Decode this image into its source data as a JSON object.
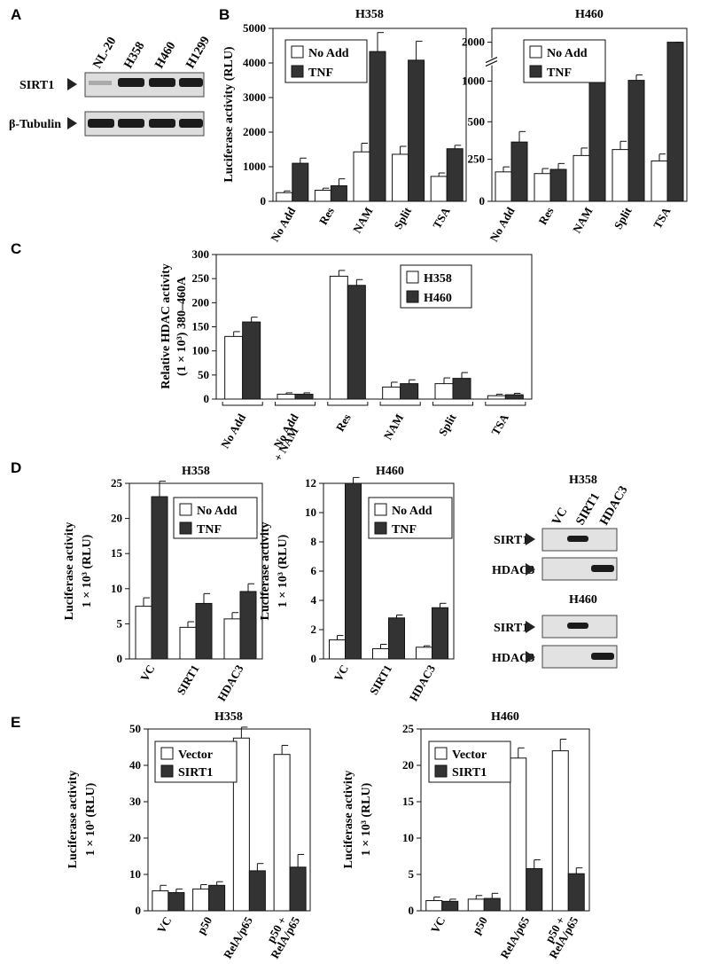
{
  "panel_labels": [
    "A",
    "B",
    "C",
    "D",
    "E"
  ],
  "blot_a": {
    "lanes": [
      "NL-20",
      "H358",
      "H460",
      "H1299"
    ],
    "rows": [
      "SIRT1",
      "β-Tubulin"
    ]
  },
  "blot_d": [
    {
      "title": "H358",
      "lanes": [
        "VC",
        "SIRT1",
        "HDAC3"
      ],
      "rows": [
        "SIRT1",
        "HDAC3"
      ]
    },
    {
      "title": "H460",
      "rows": [
        "SIRT1",
        "HDAC3"
      ]
    }
  ],
  "colors": {
    "open": "#ffffff",
    "filled": "#333333",
    "ink": "#111111"
  },
  "chart_data": [
    {
      "id": "B1",
      "type": "bar",
      "title": "H358",
      "ylabel": "Luciferase activity (RLU)",
      "categories": [
        "No Add",
        "Res",
        "NAM",
        "Split",
        "TSA"
      ],
      "ylim": [
        0,
        5000
      ],
      "yticks": [
        0,
        1000,
        2000,
        3000,
        4000,
        5000
      ],
      "legend": [
        "No Add",
        "TNF"
      ],
      "legend_position": "top-left",
      "series": [
        {
          "name": "No Add",
          "values": [
            250,
            320,
            1430,
            1360,
            720
          ],
          "errors": [
            50,
            60,
            250,
            230,
            100
          ]
        },
        {
          "name": "TNF",
          "values": [
            1100,
            450,
            4330,
            4080,
            1520
          ],
          "errors": [
            150,
            200,
            550,
            550,
            100
          ]
        }
      ]
    },
    {
      "id": "B2",
      "type": "bar",
      "title": "H460",
      "categories": [
        "No Add",
        "Res",
        "NAM",
        "Split",
        "TSA"
      ],
      "ylim": [
        0,
        2000
      ],
      "yticks": [
        0,
        250,
        500,
        1000,
        2000
      ],
      "axis_break": true,
      "legend": [
        "No Add",
        "TNF"
      ],
      "legend_position": "top-left",
      "series": [
        {
          "name": "No Add",
          "values": [
            175,
            165,
            275,
            315,
            240
          ],
          "errors": [
            30,
            30,
            50,
            55,
            45
          ]
        },
        {
          "name": "TNF",
          "values": [
            365,
            190,
            1060,
            1020,
            2000
          ],
          "errors": [
            70,
            35,
            130,
            140,
            100
          ]
        }
      ]
    },
    {
      "id": "C",
      "type": "bar",
      "ylabel": [
        "Relative HDAC activity",
        "(1 × 10³) 380–460A"
      ],
      "categories": [
        [
          "No Add"
        ],
        [
          "No Add",
          "+ NAM"
        ],
        [
          "Res"
        ],
        [
          "NAM"
        ],
        [
          "Split"
        ],
        [
          "TSA"
        ]
      ],
      "ylim": [
        0,
        300
      ],
      "yticks": [
        0,
        50,
        100,
        150,
        200,
        250,
        300
      ],
      "legend": [
        "H358",
        "H460"
      ],
      "legend_position": "top-right",
      "series": [
        {
          "name": "H358",
          "values": [
            130,
            10,
            255,
            25,
            32,
            7
          ],
          "errors": [
            10,
            3,
            12,
            10,
            12,
            3
          ]
        },
        {
          "name": "H460",
          "values": [
            160,
            10,
            236,
            32,
            43,
            9
          ],
          "errors": [
            10,
            3,
            12,
            8,
            12,
            3
          ]
        }
      ]
    },
    {
      "id": "D1",
      "type": "bar",
      "title": "H358",
      "ylabel": [
        "Luciferase activity",
        "1 × 10³ (RLU)"
      ],
      "categories": [
        "VC",
        "SIRT1",
        "HDAC3"
      ],
      "ylim": [
        0,
        25
      ],
      "yticks": [
        0,
        5,
        10,
        15,
        20,
        25
      ],
      "legend": [
        "No Add",
        "TNF"
      ],
      "legend_position": "top-right",
      "series": [
        {
          "name": "No Add",
          "values": [
            7.5,
            4.5,
            5.7
          ],
          "errors": [
            1.2,
            0.8,
            0.9
          ]
        },
        {
          "name": "TNF",
          "values": [
            23.1,
            7.9,
            9.6
          ],
          "errors": [
            2.2,
            1.4,
            1.1
          ]
        }
      ]
    },
    {
      "id": "D2",
      "type": "bar",
      "title": "H460",
      "ylabel": [
        "Luciferase activity",
        "1 × 10³ (RLU)"
      ],
      "categories": [
        "VC",
        "SIRT1",
        "HDAC3"
      ],
      "ylim": [
        0,
        12
      ],
      "yticks": [
        0,
        2,
        4,
        6,
        8,
        10,
        12
      ],
      "legend": [
        "No Add",
        "TNF"
      ],
      "legend_position": "top-right",
      "series": [
        {
          "name": "No Add",
          "values": [
            1.3,
            0.7,
            0.8
          ],
          "errors": [
            0.3,
            0.3,
            0.1
          ]
        },
        {
          "name": "TNF",
          "values": [
            12.0,
            2.8,
            3.5
          ],
          "errors": [
            0.4,
            0.2,
            0.3
          ]
        }
      ]
    },
    {
      "id": "E1",
      "type": "bar",
      "title": "H358",
      "ylabel": [
        "Luciferase activity",
        "1 × 10³ (RLU)"
      ],
      "categories": [
        [
          "VC"
        ],
        [
          "p50"
        ],
        [
          "RelA/p65"
        ],
        [
          "p50 +",
          "RelA/p65"
        ]
      ],
      "ylim": [
        0,
        50
      ],
      "yticks": [
        0,
        10,
        20,
        30,
        40,
        50
      ],
      "legend": [
        "Vector",
        "SIRT1"
      ],
      "legend_position": "top-left",
      "series": [
        {
          "name": "Vector",
          "values": [
            5.5,
            6.0,
            47.5,
            43.0
          ],
          "errors": [
            1.5,
            1.2,
            3.0,
            2.5
          ]
        },
        {
          "name": "SIRT1",
          "values": [
            5.0,
            7.0,
            11.0,
            12.0
          ],
          "errors": [
            1.0,
            1.0,
            2.0,
            3.5
          ]
        }
      ]
    },
    {
      "id": "E2",
      "type": "bar",
      "title": "H460",
      "ylabel": [
        "Luciferase activity",
        "1 × 10³ (RLU)"
      ],
      "categories": [
        [
          "VC"
        ],
        [
          "p50"
        ],
        [
          "RelA/p65"
        ],
        [
          "p50 +",
          "RelA/p65"
        ]
      ],
      "ylim": [
        0,
        25
      ],
      "yticks": [
        0,
        5,
        10,
        15,
        20,
        25
      ],
      "legend": [
        "Vector",
        "SIRT1"
      ],
      "legend_position": "top-left",
      "series": [
        {
          "name": "Vector",
          "values": [
            1.4,
            1.6,
            21.0,
            22.0
          ],
          "errors": [
            0.5,
            0.5,
            1.4,
            1.6
          ]
        },
        {
          "name": "SIRT1",
          "values": [
            1.3,
            1.7,
            5.8,
            5.1
          ],
          "errors": [
            0.3,
            0.7,
            1.2,
            0.8
          ]
        }
      ]
    }
  ]
}
